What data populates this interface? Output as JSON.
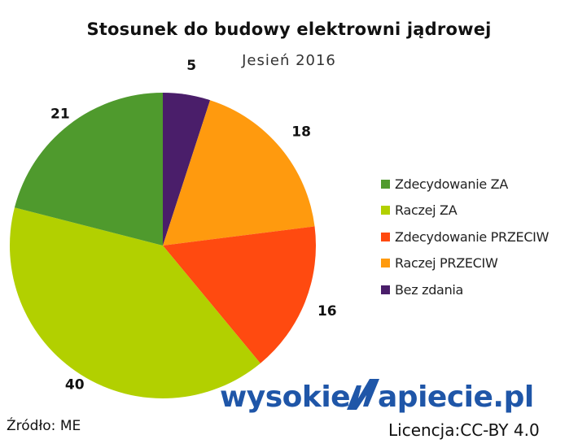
{
  "chart_data": {
    "type": "pie",
    "title": "Stosunek do budowy elektrowni jądrowej",
    "subtitle": "Jesień 2016",
    "categories": [
      "Zdecydowanie ZA",
      "Raczej ZA",
      "Zdecydowanie PRZECIW",
      "Raczej PRZECIW",
      "Bez zdania"
    ],
    "values": [
      21,
      40,
      16,
      18,
      5
    ],
    "colors": [
      "#4f9a2d",
      "#b2d000",
      "#ff4a10",
      "#ff9a0e",
      "#4a1e6a"
    ],
    "legend_position": "right"
  },
  "source_text": "Źródło: ME",
  "brand": {
    "name_part1": "wysokie",
    "name_part2": "apiecie.pl",
    "logo_name": "wysokieNapiecie.pl",
    "license_text": "Licencja:CC-BY 4.0",
    "color": "#1f56a8"
  }
}
